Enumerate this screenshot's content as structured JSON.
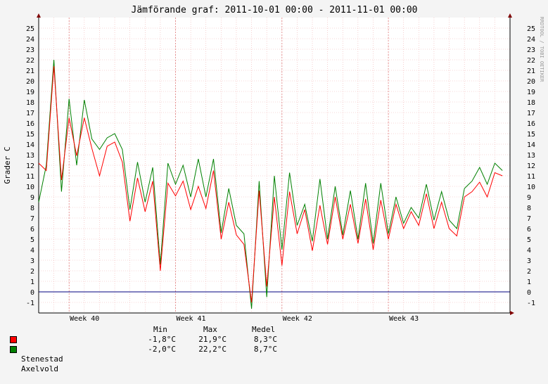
{
  "chart_data": {
    "type": "line",
    "title": "Jämförande graf: 2011-10-01 00:00 - 2011-11-01 00:00",
    "ylabel": "Grader C",
    "watermark": "RRDTOOL / TOBI OETIKER",
    "ylim": [
      -2,
      26
    ],
    "xlim": [
      "2011-10-01 00:00",
      "2011-11-01 00:00"
    ],
    "y_ticks": [
      -1,
      0,
      1,
      2,
      3,
      4,
      5,
      6,
      7,
      8,
      9,
      10,
      11,
      12,
      13,
      14,
      15,
      16,
      17,
      18,
      19,
      20,
      21,
      22,
      23,
      24,
      25
    ],
    "x_ticks": [
      {
        "label": "Week 40",
        "x": "2011-10-03"
      },
      {
        "label": "Week 41",
        "x": "2011-10-10"
      },
      {
        "label": "Week 42",
        "x": "2011-10-17"
      },
      {
        "label": "Week 43",
        "x": "2011-10-24"
      }
    ],
    "grid": true,
    "legend_position": "bottom-left",
    "series": [
      {
        "name": "Stenestad",
        "color": "#ff0000",
        "x": [
          "2011-10-01",
          "2011-10-01 12:00",
          "2011-10-02",
          "2011-10-02 12:00",
          "2011-10-03",
          "2011-10-03 12:00",
          "2011-10-04",
          "2011-10-04 12:00",
          "2011-10-05",
          "2011-10-05 12:00",
          "2011-10-06",
          "2011-10-06 12:00",
          "2011-10-07",
          "2011-10-07 12:00",
          "2011-10-08",
          "2011-10-08 12:00",
          "2011-10-09",
          "2011-10-09 12:00",
          "2011-10-10",
          "2011-10-10 12:00",
          "2011-10-11",
          "2011-10-11 12:00",
          "2011-10-12",
          "2011-10-12 12:00",
          "2011-10-13",
          "2011-10-13 12:00",
          "2011-10-14",
          "2011-10-14 12:00",
          "2011-10-15",
          "2011-10-15 12:00",
          "2011-10-16",
          "2011-10-16 12:00",
          "2011-10-17",
          "2011-10-17 12:00",
          "2011-10-18",
          "2011-10-18 12:00",
          "2011-10-19",
          "2011-10-19 12:00",
          "2011-10-20",
          "2011-10-20 12:00",
          "2011-10-21",
          "2011-10-21 12:00",
          "2011-10-22",
          "2011-10-22 12:00",
          "2011-10-23",
          "2011-10-23 12:00",
          "2011-10-24",
          "2011-10-24 12:00",
          "2011-10-25",
          "2011-10-25 12:00",
          "2011-10-26",
          "2011-10-26 12:00",
          "2011-10-27",
          "2011-10-27 12:00",
          "2011-10-28",
          "2011-10-28 12:00",
          "2011-10-29",
          "2011-10-29 12:00",
          "2011-10-30",
          "2011-10-30 12:00",
          "2011-10-31",
          "2011-10-31 12:00"
        ],
        "values": [
          12.2,
          11.5,
          21.4,
          10.6,
          16.5,
          12.9,
          16.5,
          13.6,
          11.0,
          13.8,
          14.2,
          12.3,
          6.7,
          10.8,
          7.6,
          10.5,
          2.0,
          10.3,
          9.1,
          10.5,
          7.8,
          10.0,
          7.9,
          11.5,
          5.0,
          8.5,
          5.4,
          4.5,
          -1.0,
          9.6,
          0.5,
          9.0,
          2.5,
          9.5,
          5.5,
          7.8,
          3.9,
          8.2,
          4.5,
          9.0,
          5.0,
          8.3,
          4.6,
          8.8,
          4.0,
          8.7,
          5.0,
          8.3,
          6.0,
          7.6,
          6.3,
          9.3,
          6.0,
          8.5,
          6.0,
          5.3,
          9.0,
          9.5,
          10.4,
          9.0,
          11.3,
          11.0
        ],
        "min": "-1,8°C",
        "max": "21,9°C",
        "mean": "8,3°C"
      },
      {
        "name": "Axelvold",
        "color": "#008000",
        "x": [
          "2011-10-01",
          "2011-10-01 12:00",
          "2011-10-02",
          "2011-10-02 12:00",
          "2011-10-03",
          "2011-10-03 12:00",
          "2011-10-04",
          "2011-10-04 12:00",
          "2011-10-05",
          "2011-10-05 12:00",
          "2011-10-06",
          "2011-10-06 12:00",
          "2011-10-07",
          "2011-10-07 12:00",
          "2011-10-08",
          "2011-10-08 12:00",
          "2011-10-09",
          "2011-10-09 12:00",
          "2011-10-10",
          "2011-10-10 12:00",
          "2011-10-11",
          "2011-10-11 12:00",
          "2011-10-12",
          "2011-10-12 12:00",
          "2011-10-13",
          "2011-10-13 12:00",
          "2011-10-14",
          "2011-10-14 12:00",
          "2011-10-15",
          "2011-10-15 12:00",
          "2011-10-16",
          "2011-10-16 12:00",
          "2011-10-17",
          "2011-10-17 12:00",
          "2011-10-18",
          "2011-10-18 12:00",
          "2011-10-19",
          "2011-10-19 12:00",
          "2011-10-20",
          "2011-10-20 12:00",
          "2011-10-21",
          "2011-10-21 12:00",
          "2011-10-22",
          "2011-10-22 12:00",
          "2011-10-23",
          "2011-10-23 12:00",
          "2011-10-24",
          "2011-10-24 12:00",
          "2011-10-25",
          "2011-10-25 12:00",
          "2011-10-26",
          "2011-10-26 12:00",
          "2011-10-27",
          "2011-10-27 12:00",
          "2011-10-28",
          "2011-10-28 12:00",
          "2011-10-29",
          "2011-10-29 12:00",
          "2011-10-30",
          "2011-10-30 12:00",
          "2011-10-31",
          "2011-10-31 12:00"
        ],
        "values": [
          8.5,
          12.0,
          22.0,
          9.5,
          18.3,
          12.0,
          18.2,
          14.5,
          13.5,
          14.6,
          15.0,
          13.5,
          7.8,
          12.3,
          8.5,
          11.8,
          2.6,
          12.2,
          10.2,
          12.0,
          9.0,
          12.6,
          9.0,
          12.6,
          5.6,
          9.8,
          6.3,
          5.5,
          -1.6,
          10.5,
          -0.5,
          11.0,
          4.0,
          11.3,
          6.3,
          8.3,
          4.8,
          10.7,
          5.0,
          10.0,
          5.4,
          9.6,
          5.0,
          10.3,
          4.6,
          10.3,
          5.5,
          9.0,
          6.5,
          8.0,
          7.0,
          10.2,
          6.8,
          9.5,
          6.8,
          6.0,
          9.8,
          10.5,
          11.8,
          10.2,
          12.2,
          11.5
        ],
        "min": "-2,0°C",
        "max": "22,2°C",
        "mean": "8,7°C"
      }
    ],
    "legend": {
      "headers": {
        "min": "Min",
        "max": "Max",
        "mean": "Medel"
      }
    }
  }
}
